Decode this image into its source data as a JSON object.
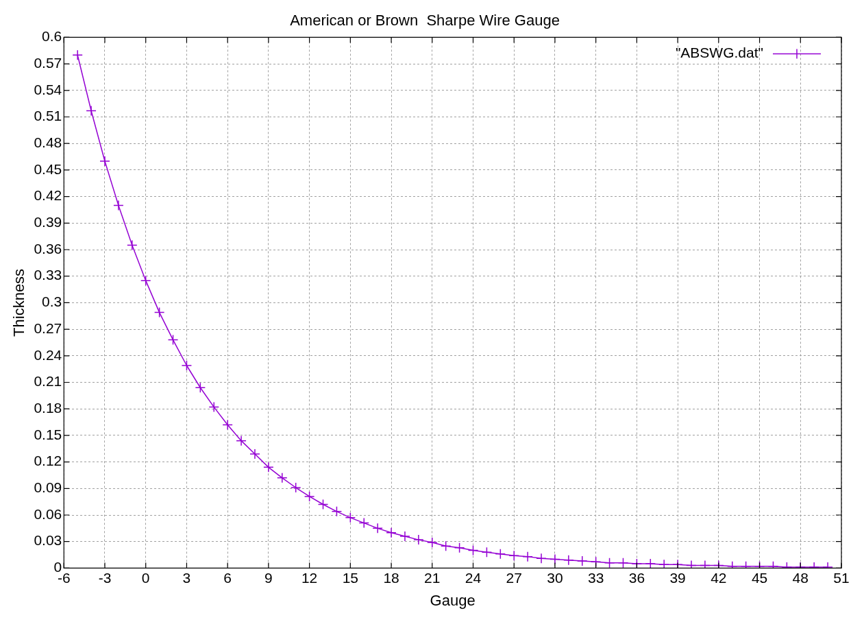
{
  "chart_data": {
    "type": "line",
    "title": "American or Brown  Sharpe Wire Gauge",
    "xlabel": "Gauge",
    "ylabel": "Thickness",
    "x": [
      -5,
      -4,
      -3,
      -2,
      -1,
      0,
      1,
      2,
      3,
      4,
      5,
      6,
      7,
      8,
      9,
      10,
      11,
      12,
      13,
      14,
      15,
      16,
      17,
      18,
      19,
      20,
      21,
      22,
      23,
      24,
      25,
      26,
      27,
      28,
      29,
      30,
      31,
      32,
      33,
      34,
      35,
      36,
      37,
      38,
      39,
      40,
      41,
      42,
      43,
      44,
      45,
      46,
      47,
      48,
      49,
      50
    ],
    "series": [
      {
        "name": "\"ABSWG.dat\"",
        "color": "#9400d3",
        "values": [
          0.58,
          0.517,
          0.46,
          0.41,
          0.365,
          0.325,
          0.289,
          0.258,
          0.229,
          0.204,
          0.182,
          0.162,
          0.144,
          0.129,
          0.114,
          0.102,
          0.091,
          0.081,
          0.072,
          0.064,
          0.057,
          0.051,
          0.045,
          0.04,
          0.036,
          0.032,
          0.029,
          0.025,
          0.023,
          0.02,
          0.018,
          0.016,
          0.014,
          0.013,
          0.011,
          0.01,
          0.009,
          0.008,
          0.007,
          0.006,
          0.006,
          0.005,
          0.005,
          0.004,
          0.004,
          0.003,
          0.003,
          0.003,
          0.002,
          0.002,
          0.002,
          0.002,
          0.001,
          0.001,
          0.001,
          0.001
        ]
      }
    ],
    "xlim": [
      -6,
      51
    ],
    "xticks": [
      -6,
      -3,
      0,
      3,
      6,
      9,
      12,
      15,
      18,
      21,
      24,
      27,
      30,
      33,
      36,
      39,
      42,
      45,
      48,
      51
    ],
    "ylim": [
      0,
      0.6
    ],
    "yticks": [
      0,
      0.03,
      0.06,
      0.09,
      0.12,
      0.15,
      0.18,
      0.21,
      0.24,
      0.27,
      0.3,
      0.33,
      0.36,
      0.39,
      0.42,
      0.45,
      0.48,
      0.51,
      0.54,
      0.57,
      0.6
    ],
    "grid": true,
    "legend": "top right",
    "marker": "cross",
    "line_style": "solid"
  }
}
